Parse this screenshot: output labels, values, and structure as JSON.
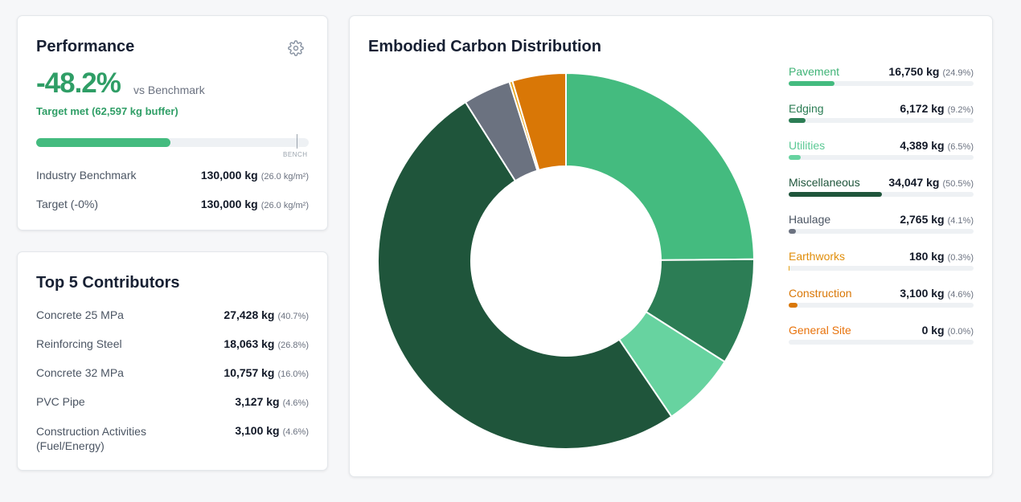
{
  "performance": {
    "title": "Performance",
    "icon": "gear-icon",
    "pct": "-48.2%",
    "vs_label": "vs Benchmark",
    "target_met": "Target met (62,597 kg buffer)",
    "progress_fraction": 0.492,
    "bench_label": "BENCH",
    "rows": [
      {
        "label": "Industry Benchmark",
        "value": "130,000 kg",
        "sub": "(26.0 kg/m²)"
      },
      {
        "label": "Target (-0%)",
        "value": "130,000 kg",
        "sub": "(26.0 kg/m²)"
      }
    ]
  },
  "top5": {
    "title": "Top 5 Contributors",
    "items": [
      {
        "label": "Concrete 25 MPa",
        "value": "27,428 kg",
        "sub": "(40.7%)"
      },
      {
        "label": "Reinforcing Steel",
        "value": "18,063 kg",
        "sub": "(26.8%)"
      },
      {
        "label": "Concrete 32 MPa",
        "value": "10,757 kg",
        "sub": "(16.0%)"
      },
      {
        "label": "PVC Pipe",
        "value": "3,127 kg",
        "sub": "(4.6%)"
      },
      {
        "label": "Construction Activities (Fuel/Energy)",
        "value": "3,100 kg",
        "sub": "(4.6%)"
      }
    ]
  },
  "distribution": {
    "title": "Embodied Carbon Distribution",
    "legend": [
      {
        "name": "Pavement",
        "value": "16,750 kg",
        "pct": "(24.9%)",
        "color": "#44bb7f",
        "label_color": "#3fb376"
      },
      {
        "name": "Edging",
        "value": "6,172 kg",
        "pct": "(9.2%)",
        "color": "#2c7d55",
        "label_color": "#2c7d55"
      },
      {
        "name": "Utilities",
        "value": "4,389 kg",
        "pct": "(6.5%)",
        "color": "#67d3a0",
        "label_color": "#5cc995"
      },
      {
        "name": "Miscellaneous",
        "value": "34,047 kg",
        "pct": "(50.5%)",
        "color": "#1f553b",
        "label_color": "#1f553b"
      },
      {
        "name": "Haulage",
        "value": "2,765 kg",
        "pct": "(4.1%)",
        "color": "#6b7280",
        "label_color": "#4b5563"
      },
      {
        "name": "Earthworks",
        "value": "180 kg",
        "pct": "(0.3%)",
        "color": "#e8a317",
        "label_color": "#e08e0b"
      },
      {
        "name": "Construction",
        "value": "3,100 kg",
        "pct": "(4.6%)",
        "color": "#d97706",
        "label_color": "#d97706"
      },
      {
        "name": "General Site",
        "value": "0 kg",
        "pct": "(0.0%)",
        "color": "#ea580c",
        "label_color": "#e8730c"
      }
    ]
  },
  "chart_data": {
    "type": "pie",
    "title": "Embodied Carbon Distribution",
    "categories": [
      "Pavement",
      "Edging",
      "Utilities",
      "Miscellaneous",
      "Haulage",
      "Earthworks",
      "Construction",
      "General Site"
    ],
    "values": [
      16750,
      6172,
      4389,
      34047,
      2765,
      180,
      3100,
      0
    ],
    "colors": [
      "#44bb7f",
      "#2c7d55",
      "#67d3a0",
      "#1f553b",
      "#6b7280",
      "#e8a317",
      "#d97706",
      "#ea580c"
    ],
    "donut": true,
    "legend": "right"
  }
}
